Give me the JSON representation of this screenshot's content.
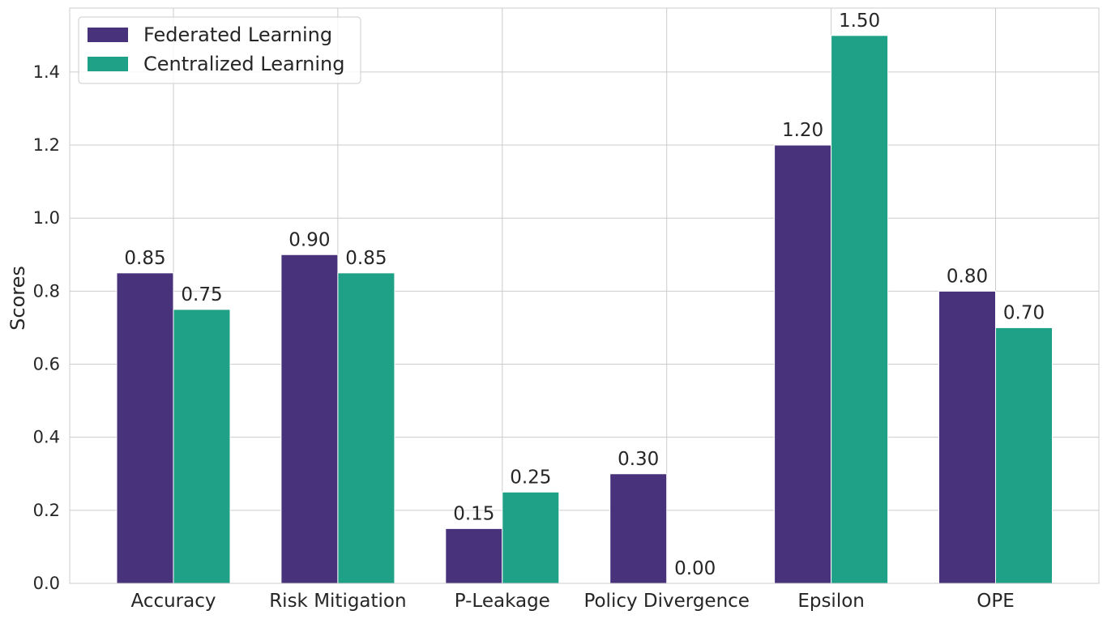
{
  "chart_data": {
    "type": "bar",
    "title": "",
    "xlabel": "",
    "ylabel": "Scores",
    "ylim": [
      0,
      1.575
    ],
    "yticks": [
      0.0,
      0.2,
      0.4,
      0.6,
      0.8,
      1.0,
      1.2,
      1.4
    ],
    "ytick_labels": [
      "0.0",
      "0.2",
      "0.4",
      "0.6",
      "0.8",
      "1.0",
      "1.2",
      "1.4"
    ],
    "grid": true,
    "legend_position": "top-left",
    "categories": [
      "Accuracy",
      "Risk Mitigation",
      "P-Leakage",
      "Policy Divergence",
      "Epsilon",
      "OPE"
    ],
    "series": [
      {
        "name": "Federated Learning",
        "color": "#48327c",
        "values": [
          0.85,
          0.9,
          0.15,
          0.3,
          1.2,
          0.8
        ],
        "labels": [
          "0.85",
          "0.90",
          "0.15",
          "0.30",
          "1.20",
          "0.80"
        ]
      },
      {
        "name": "Centralized Learning",
        "color": "#1fa187",
        "values": [
          0.75,
          0.85,
          0.25,
          0.0,
          1.5,
          0.7
        ],
        "labels": [
          "0.75",
          "0.85",
          "0.25",
          "0.00",
          "1.50",
          "0.70"
        ]
      }
    ]
  }
}
